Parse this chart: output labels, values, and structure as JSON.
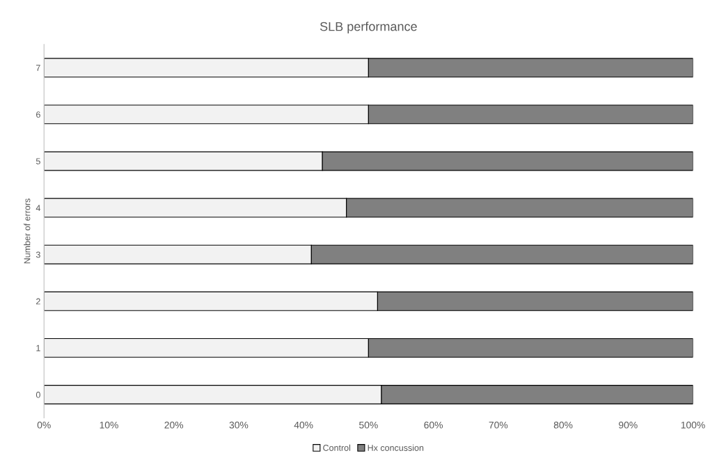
{
  "chart_data": {
    "type": "bar",
    "orientation": "horizontal",
    "stacked": true,
    "title": "SLB performance",
    "ylabel": "Number of errors",
    "categories": [
      "7",
      "6",
      "5",
      "4",
      "3",
      "2",
      "1",
      "0"
    ],
    "series": [
      {
        "name": "Control",
        "color": "#f2f2f2",
        "values": [
          50.0,
          50.0,
          42.9,
          46.6,
          41.2,
          51.4,
          50.0,
          52.0
        ]
      },
      {
        "name": "Hx concussion",
        "color": "#808080",
        "values": [
          50.0,
          50.0,
          57.1,
          53.4,
          58.8,
          48.6,
          50.0,
          48.0
        ]
      }
    ],
    "xlim": [
      0,
      100
    ],
    "xticks": [
      {
        "value": 0,
        "label": "0%"
      },
      {
        "value": 10,
        "label": "10%"
      },
      {
        "value": 20,
        "label": "20%"
      },
      {
        "value": 30,
        "label": "30%"
      },
      {
        "value": 40,
        "label": "40%"
      },
      {
        "value": 50,
        "label": "50%"
      },
      {
        "value": 60,
        "label": "60%"
      },
      {
        "value": 70,
        "label": "70%"
      },
      {
        "value": 80,
        "label": "80%"
      },
      {
        "value": 90,
        "label": "90%"
      },
      {
        "value": 100,
        "label": "100%"
      }
    ],
    "grid": false,
    "legend": "bottom"
  }
}
